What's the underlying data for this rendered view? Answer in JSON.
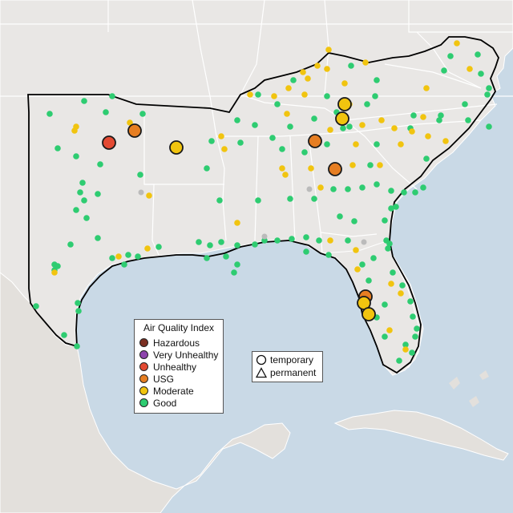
{
  "legend": {
    "title": "Air Quality Index",
    "categories": [
      {
        "label": "Hazardous",
        "color": "#7b2f22"
      },
      {
        "label": "Very Unhealthy",
        "color": "#8e44ad"
      },
      {
        "label": "Unhealthy",
        "color": "#e34a33"
      },
      {
        "label": "USG",
        "color": "#e67e22"
      },
      {
        "label": "Moderate",
        "color": "#f1c40f"
      },
      {
        "label": "Good",
        "color": "#2ecc71"
      }
    ]
  },
  "site_types": [
    {
      "label": "temporary",
      "icon": "circle-icon"
    },
    {
      "label": "permanent",
      "icon": "triangle-icon"
    }
  ],
  "colors": {
    "water": "#c9d9e6",
    "land_usa": "#e9e7e5",
    "land_other": "#e3e0dc",
    "borders": "#ffffff",
    "region_outline": "#000000"
  }
}
